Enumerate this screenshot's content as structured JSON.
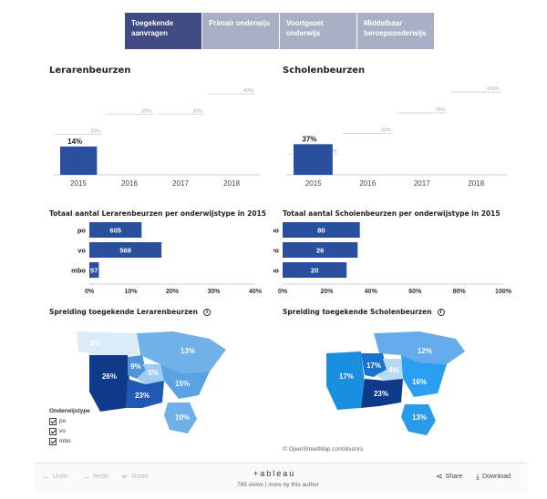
{
  "tabs": [
    {
      "label": "Toegekende aanvragen",
      "active": true
    },
    {
      "label": "Primair onderwijs",
      "active": false
    },
    {
      "label": "Voortgezet onderwijs",
      "active": false
    },
    {
      "label": "Middelbaar beroepsonderwijs",
      "active": false
    }
  ],
  "left": {
    "title": "Lerarenbeurzen",
    "trend_chart": {
      "type": "bar",
      "categories": [
        "2015",
        "2016",
        "2017",
        "2018"
      ],
      "values": [
        14,
        null,
        null,
        null
      ],
      "value_label": "14%",
      "targets": [
        20,
        30,
        30,
        40
      ],
      "target_labels": [
        "20%",
        "30%",
        "30%",
        "40%"
      ],
      "ylim": [
        0,
        45
      ]
    },
    "type_chart_title": "Totaal aantal Lerarenbeurzen per onderwijstype in 2015",
    "type_chart": {
      "type": "bar",
      "categories": [
        "po",
        "vo",
        "mbo"
      ],
      "values": [
        605,
        569,
        57
      ],
      "percent": [
        12.6,
        17.4,
        2.3
      ],
      "xticks": [
        "0%",
        "10%",
        "20%",
        "30%",
        "40%"
      ],
      "xlim": [
        0,
        40
      ]
    },
    "map_title": "Spreiding toegekende Lerarenbeurzen",
    "map_labels": [
      "3%",
      "13%",
      "26%",
      "9%",
      "5%",
      "15%",
      "23%",
      "10%"
    ]
  },
  "right": {
    "title": "Scholenbeurzen",
    "trend_chart": {
      "type": "bar",
      "categories": [
        "2015",
        "2016",
        "2017",
        "2018"
      ],
      "values": [
        37,
        null,
        null,
        null
      ],
      "value_label": "37%",
      "targets": [
        25,
        50,
        75,
        100
      ],
      "target_labels": [
        "25%",
        "50%",
        "75%",
        "100%"
      ],
      "ylim": [
        0,
        110
      ]
    },
    "type_chart_title": "Totaal aantal  Scholenbeurzen per onderwijstype in 2015",
    "type_chart": {
      "type": "bar",
      "categories": [
        "po",
        "vo",
        "mbo"
      ],
      "values": [
        80,
        26,
        20
      ],
      "percent": [
        35,
        34,
        29
      ],
      "xticks": [
        "0%",
        "20%",
        "40%",
        "60%",
        "80%",
        "100%"
      ],
      "xlim": [
        0,
        100
      ]
    },
    "map_title": "Spreiding toegekende Scholenbeurzen",
    "map_labels": [
      "12%",
      "17%",
      "17%",
      "4%",
      "16%",
      "23%",
      "13%"
    ]
  },
  "legend": {
    "title": "Onderwijstype",
    "items": [
      "po",
      "vo",
      "mbo"
    ]
  },
  "map_credit": "© OpenStreetMap contributors",
  "toolbar": {
    "undo": "Undo",
    "redo": "Redo",
    "reset": "Reset",
    "brand": "+ableau",
    "views": "765 views | more by this author",
    "share": "Share",
    "download": "Download"
  },
  "colors": {
    "bar": "#2a4f9e",
    "tab_active": "#3f4b82",
    "tab_inactive": "#a9b0c6",
    "map_dark": "#0d3a8c",
    "map_mid": "#2a66c2",
    "map_light": "#62a7e4",
    "map_pale": "#cfe4f6"
  }
}
